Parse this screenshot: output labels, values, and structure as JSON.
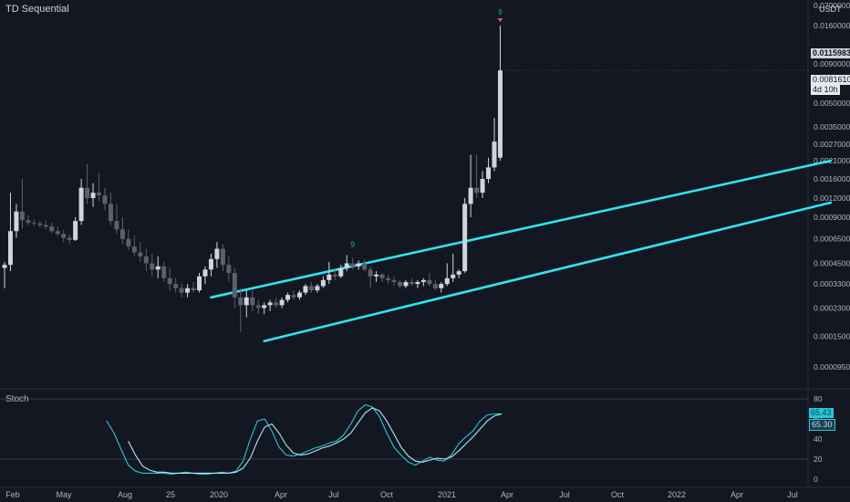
{
  "indicator_title": "TD Sequential",
  "stoch_title": "Stoch",
  "price_unit": "USDT",
  "last_price_tag": "0.0115983",
  "close_price_tag": "0.0081610",
  "countdown_tag": "4d 10h",
  "stoch_k_tag": "65.43",
  "stoch_d_tag": "65.30",
  "colors": {
    "background": "#131722",
    "bull_candle": "#d1d4dc",
    "bear_candle": "#5d606b",
    "trendline": "#2ee6f0",
    "stoch_k": "#26c6da",
    "stoch_d": "#b2ebf2",
    "td_nine": "#26a69a",
    "sell_arrow": "#ef5350"
  },
  "chart_data": [
    {
      "type": "candlestick",
      "scale": "log",
      "price_axis_labels": [
        "0.0700000",
        "0.0160000",
        "0.0090000",
        "0.0050000",
        "0.0035000",
        "0.0027000",
        "0.0021000",
        "0.0016000",
        "0.0012000",
        "0.0009000",
        "0.0006500",
        "0.0004500",
        "0.0003300",
        "0.0002300",
        "0.0001500",
        "0.0000950"
      ],
      "time_axis_labels": [
        "Feb",
        "May",
        "Aug",
        "25",
        "2020",
        "Apr",
        "Jul",
        "Oct",
        "2021",
        "Apr",
        "Jul",
        "Oct",
        "2022",
        "Apr",
        "Jul"
      ],
      "ohlc": [
        {
          "o": 0.00042,
          "h": 0.00046,
          "l": 0.00031,
          "c": 0.00044
        },
        {
          "o": 0.00044,
          "h": 0.0013,
          "l": 0.0004,
          "c": 0.00073
        },
        {
          "o": 0.00073,
          "h": 0.0011,
          "l": 0.00066,
          "c": 0.00098
        },
        {
          "o": 0.00098,
          "h": 0.0016,
          "l": 0.00076,
          "c": 0.00086
        },
        {
          "o": 0.00086,
          "h": 0.00093,
          "l": 0.0008,
          "c": 0.00083
        },
        {
          "o": 0.00083,
          "h": 0.00087,
          "l": 0.00079,
          "c": 0.00082
        },
        {
          "o": 0.00082,
          "h": 0.00085,
          "l": 0.00077,
          "c": 0.0008
        },
        {
          "o": 0.0008,
          "h": 0.00085,
          "l": 0.00075,
          "c": 0.00078
        },
        {
          "o": 0.00078,
          "h": 0.00083,
          "l": 0.00071,
          "c": 0.00073
        },
        {
          "o": 0.00073,
          "h": 0.00078,
          "l": 0.00068,
          "c": 0.0007
        },
        {
          "o": 0.0007,
          "h": 0.00074,
          "l": 0.00062,
          "c": 0.00066
        },
        {
          "o": 0.00066,
          "h": 0.0007,
          "l": 0.0006,
          "c": 0.00064
        },
        {
          "o": 0.00064,
          "h": 0.0009,
          "l": 0.00063,
          "c": 0.00085
        },
        {
          "o": 0.00085,
          "h": 0.0016,
          "l": 0.0008,
          "c": 0.0014
        },
        {
          "o": 0.0014,
          "h": 0.002,
          "l": 0.0011,
          "c": 0.0012
        },
        {
          "o": 0.0012,
          "h": 0.0015,
          "l": 0.00105,
          "c": 0.0013
        },
        {
          "o": 0.0013,
          "h": 0.00175,
          "l": 0.00115,
          "c": 0.00125
        },
        {
          "o": 0.00125,
          "h": 0.0014,
          "l": 0.001,
          "c": 0.0011
        },
        {
          "o": 0.0011,
          "h": 0.0013,
          "l": 0.0008,
          "c": 0.00085
        },
        {
          "o": 0.00085,
          "h": 0.0011,
          "l": 0.0007,
          "c": 0.00075
        },
        {
          "o": 0.00075,
          "h": 0.0009,
          "l": 0.0006,
          "c": 0.00065
        },
        {
          "o": 0.00065,
          "h": 0.00075,
          "l": 0.00055,
          "c": 0.00058
        },
        {
          "o": 0.00058,
          "h": 0.00068,
          "l": 0.0005,
          "c": 0.00053
        },
        {
          "o": 0.00053,
          "h": 0.00062,
          "l": 0.00046,
          "c": 0.0005
        },
        {
          "o": 0.0005,
          "h": 0.00056,
          "l": 0.0004,
          "c": 0.00045
        },
        {
          "o": 0.00045,
          "h": 0.00052,
          "l": 0.00037,
          "c": 0.00041
        },
        {
          "o": 0.00041,
          "h": 0.0005,
          "l": 0.00036,
          "c": 0.00043
        },
        {
          "o": 0.00043,
          "h": 0.00046,
          "l": 0.00034,
          "c": 0.00036
        },
        {
          "o": 0.00036,
          "h": 0.00042,
          "l": 0.0003,
          "c": 0.00033
        },
        {
          "o": 0.00033,
          "h": 0.00036,
          "l": 0.00029,
          "c": 0.00031
        },
        {
          "o": 0.00031,
          "h": 0.00033,
          "l": 0.00027,
          "c": 0.00029
        },
        {
          "o": 0.00029,
          "h": 0.00033,
          "l": 0.00027,
          "c": 0.00031
        },
        {
          "o": 0.00031,
          "h": 0.00034,
          "l": 0.00029,
          "c": 0.0003
        },
        {
          "o": 0.0003,
          "h": 0.00039,
          "l": 0.00029,
          "c": 0.00037
        },
        {
          "o": 0.00037,
          "h": 0.00043,
          "l": 0.00033,
          "c": 0.00041
        },
        {
          "o": 0.00041,
          "h": 0.00052,
          "l": 0.00037,
          "c": 0.00048
        },
        {
          "o": 0.00048,
          "h": 0.00062,
          "l": 0.00042,
          "c": 0.00056
        },
        {
          "o": 0.00056,
          "h": 0.0006,
          "l": 0.0004,
          "c": 0.00044
        },
        {
          "o": 0.00044,
          "h": 0.0005,
          "l": 0.00034,
          "c": 0.00039
        },
        {
          "o": 0.00039,
          "h": 0.00042,
          "l": 0.00023,
          "c": 0.00027
        },
        {
          "o": 0.00027,
          "h": 0.00031,
          "l": 0.00016,
          "c": 0.00024
        },
        {
          "o": 0.00024,
          "h": 0.0003,
          "l": 0.0002,
          "c": 0.00027
        },
        {
          "o": 0.00027,
          "h": 0.0003,
          "l": 0.00022,
          "c": 0.00024
        },
        {
          "o": 0.00024,
          "h": 0.00026,
          "l": 0.00021,
          "c": 0.00023
        },
        {
          "o": 0.00023,
          "h": 0.00025,
          "l": 0.00021,
          "c": 0.00024
        },
        {
          "o": 0.00024,
          "h": 0.00026,
          "l": 0.00022,
          "c": 0.00025
        },
        {
          "o": 0.00025,
          "h": 0.00027,
          "l": 0.00023,
          "c": 0.00024
        },
        {
          "o": 0.00024,
          "h": 0.00027,
          "l": 0.00023,
          "c": 0.00026
        },
        {
          "o": 0.00026,
          "h": 0.00029,
          "l": 0.00025,
          "c": 0.00028
        },
        {
          "o": 0.00028,
          "h": 0.0003,
          "l": 0.00026,
          "c": 0.00027
        },
        {
          "o": 0.00027,
          "h": 0.0003,
          "l": 0.00026,
          "c": 0.00029
        },
        {
          "o": 0.00029,
          "h": 0.00033,
          "l": 0.00028,
          "c": 0.00032
        },
        {
          "o": 0.00032,
          "h": 0.00034,
          "l": 0.00029,
          "c": 0.0003
        },
        {
          "o": 0.0003,
          "h": 0.00033,
          "l": 0.00029,
          "c": 0.00032
        },
        {
          "o": 0.00032,
          "h": 0.00037,
          "l": 0.00031,
          "c": 0.00035
        },
        {
          "o": 0.00035,
          "h": 0.00046,
          "l": 0.00033,
          "c": 0.00038
        },
        {
          "o": 0.00038,
          "h": 0.00041,
          "l": 0.00035,
          "c": 0.00037
        },
        {
          "o": 0.00037,
          "h": 0.00044,
          "l": 0.00036,
          "c": 0.00042
        },
        {
          "o": 0.00042,
          "h": 0.00051,
          "l": 0.0004,
          "c": 0.00045
        },
        {
          "o": 0.00045,
          "h": 0.00049,
          "l": 0.00041,
          "c": 0.00043
        },
        {
          "o": 0.00043,
          "h": 0.00047,
          "l": 0.00041,
          "c": 0.00045
        },
        {
          "o": 0.00045,
          "h": 0.00048,
          "l": 0.0004,
          "c": 0.00041
        },
        {
          "o": 0.00041,
          "h": 0.00043,
          "l": 0.00031,
          "c": 0.00037
        },
        {
          "o": 0.00037,
          "h": 0.0004,
          "l": 0.00034,
          "c": 0.00038
        },
        {
          "o": 0.00038,
          "h": 0.00039,
          "l": 0.00034,
          "c": 0.00036
        },
        {
          "o": 0.00036,
          "h": 0.00038,
          "l": 0.00033,
          "c": 0.00035
        },
        {
          "o": 0.00035,
          "h": 0.00037,
          "l": 0.00032,
          "c": 0.00034
        },
        {
          "o": 0.00034,
          "h": 0.00035,
          "l": 0.00031,
          "c": 0.00032
        },
        {
          "o": 0.00032,
          "h": 0.00035,
          "l": 0.00031,
          "c": 0.00034
        },
        {
          "o": 0.00034,
          "h": 0.00036,
          "l": 0.00032,
          "c": 0.00033
        },
        {
          "o": 0.00033,
          "h": 0.00035,
          "l": 0.00031,
          "c": 0.00034
        },
        {
          "o": 0.00034,
          "h": 0.00036,
          "l": 0.00032,
          "c": 0.00035
        },
        {
          "o": 0.00035,
          "h": 0.00039,
          "l": 0.00032,
          "c": 0.00033
        },
        {
          "o": 0.00033,
          "h": 0.00035,
          "l": 0.0003,
          "c": 0.00031
        },
        {
          "o": 0.00031,
          "h": 0.00034,
          "l": 0.00029,
          "c": 0.00033
        },
        {
          "o": 0.00033,
          "h": 0.00045,
          "l": 0.00032,
          "c": 0.00036
        },
        {
          "o": 0.00036,
          "h": 0.00052,
          "l": 0.00034,
          "c": 0.00038
        },
        {
          "o": 0.00038,
          "h": 0.00041,
          "l": 0.00036,
          "c": 0.0004
        },
        {
          "o": 0.0004,
          "h": 0.0012,
          "l": 0.00039,
          "c": 0.0011
        },
        {
          "o": 0.0011,
          "h": 0.0023,
          "l": 0.0009,
          "c": 0.0014
        },
        {
          "o": 0.0014,
          "h": 0.0023,
          "l": 0.0012,
          "c": 0.0013
        },
        {
          "o": 0.0013,
          "h": 0.0018,
          "l": 0.0012,
          "c": 0.0016
        },
        {
          "o": 0.0016,
          "h": 0.0022,
          "l": 0.0015,
          "c": 0.0019
        },
        {
          "o": 0.0019,
          "h": 0.004,
          "l": 0.0018,
          "c": 0.0028
        },
        {
          "o": 0.0022,
          "h": 0.016,
          "l": 0.0021,
          "c": 0.00816
        }
      ],
      "td_labels": [
        {
          "index": 59,
          "text": "9"
        },
        {
          "index": 84,
          "text": "9"
        }
      ],
      "trendlines": [
        {
          "from": {
            "index": 35,
            "price": 0.00027
          },
          "to": {
            "index": 140,
            "price": 0.0021
          }
        },
        {
          "from": {
            "index": 44,
            "price": 0.00014
          },
          "to": {
            "index": 140,
            "price": 0.00112
          }
        }
      ]
    },
    {
      "type": "line",
      "title": "Stoch",
      "y_axis_labels": [
        "80",
        "60",
        "40",
        "20",
        "0"
      ],
      "ylim": [
        0,
        80
      ],
      "bands": [
        20,
        80
      ],
      "series": [
        {
          "values": [
            58,
            46,
            30,
            14,
            8,
            6,
            6,
            6,
            6,
            5,
            6,
            7,
            6,
            5,
            5,
            6,
            7,
            6,
            8,
            18,
            40,
            58,
            60,
            48,
            32,
            24,
            23,
            25,
            28,
            31,
            33,
            36,
            38,
            44,
            55,
            68,
            74,
            72,
            62,
            46,
            32,
            24,
            17,
            14,
            18,
            22,
            19,
            18,
            24,
            35,
            42,
            48,
            58,
            64,
            65,
            65
          ]
        },
        {
          "values": [
            null,
            null,
            null,
            38,
            24,
            13,
            9,
            7,
            7,
            6,
            6,
            6,
            6,
            6,
            6,
            6,
            6,
            6,
            7,
            11,
            21,
            38,
            52,
            55,
            46,
            34,
            26,
            24,
            25,
            28,
            31,
            33,
            36,
            40,
            46,
            56,
            66,
            71,
            68,
            58,
            45,
            32,
            23,
            18,
            17,
            19,
            21,
            20,
            22,
            28,
            35,
            42,
            50,
            58,
            63,
            65
          ]
        }
      ]
    }
  ]
}
